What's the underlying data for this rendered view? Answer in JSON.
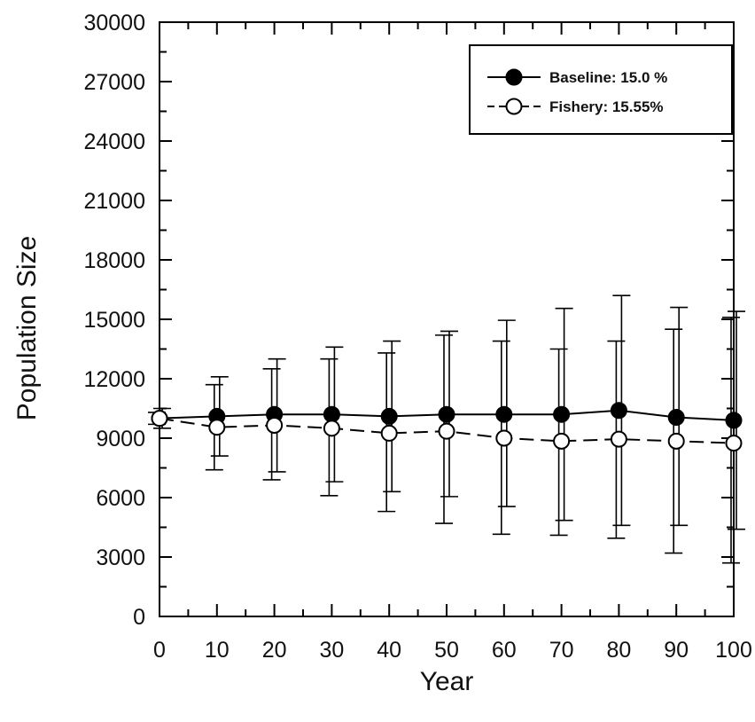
{
  "chart_data": {
    "type": "line",
    "title": "",
    "xlabel": "Year",
    "ylabel": "Population Size",
    "xlim": [
      0,
      100
    ],
    "ylim": [
      0,
      30000
    ],
    "x_ticks": [
      0,
      10,
      20,
      30,
      40,
      50,
      60,
      70,
      80,
      90,
      100
    ],
    "y_ticks": [
      0,
      3000,
      6000,
      9000,
      12000,
      15000,
      18000,
      21000,
      24000,
      27000,
      30000
    ],
    "grid": false,
    "legend_position": "top-right",
    "x": [
      0,
      10,
      20,
      30,
      40,
      50,
      60,
      70,
      80,
      90,
      100
    ],
    "series": [
      {
        "name": "Baseline: 15.0 %",
        "marker": "filled-circle",
        "line_style": "solid",
        "color": "#000000",
        "values": [
          10000,
          10100,
          10200,
          10200,
          10100,
          10200,
          10200,
          10200,
          10400,
          10050,
          9900
        ],
        "error_upper": [
          10500,
          12100,
          13000,
          13600,
          13900,
          14400,
          14950,
          15550,
          16200,
          15600,
          15400
        ],
        "error_lower": [
          9500,
          8100,
          7300,
          6800,
          6300,
          6050,
          5550,
          4850,
          4600,
          4600,
          4400
        ]
      },
      {
        "name": "Fishery: 15.55%",
        "marker": "open-circle",
        "line_style": "dashed",
        "color": "#000000",
        "values": [
          10000,
          9550,
          9650,
          9500,
          9250,
          9350,
          9000,
          8850,
          8950,
          8850,
          8750
        ],
        "error_upper": [
          10300,
          11700,
          12500,
          13000,
          13300,
          14200,
          13900,
          13500,
          13900,
          14500,
          15100
        ],
        "error_lower": [
          9700,
          7400,
          6900,
          6100,
          5300,
          4700,
          4150,
          4100,
          3950,
          3200,
          2700
        ]
      }
    ]
  }
}
